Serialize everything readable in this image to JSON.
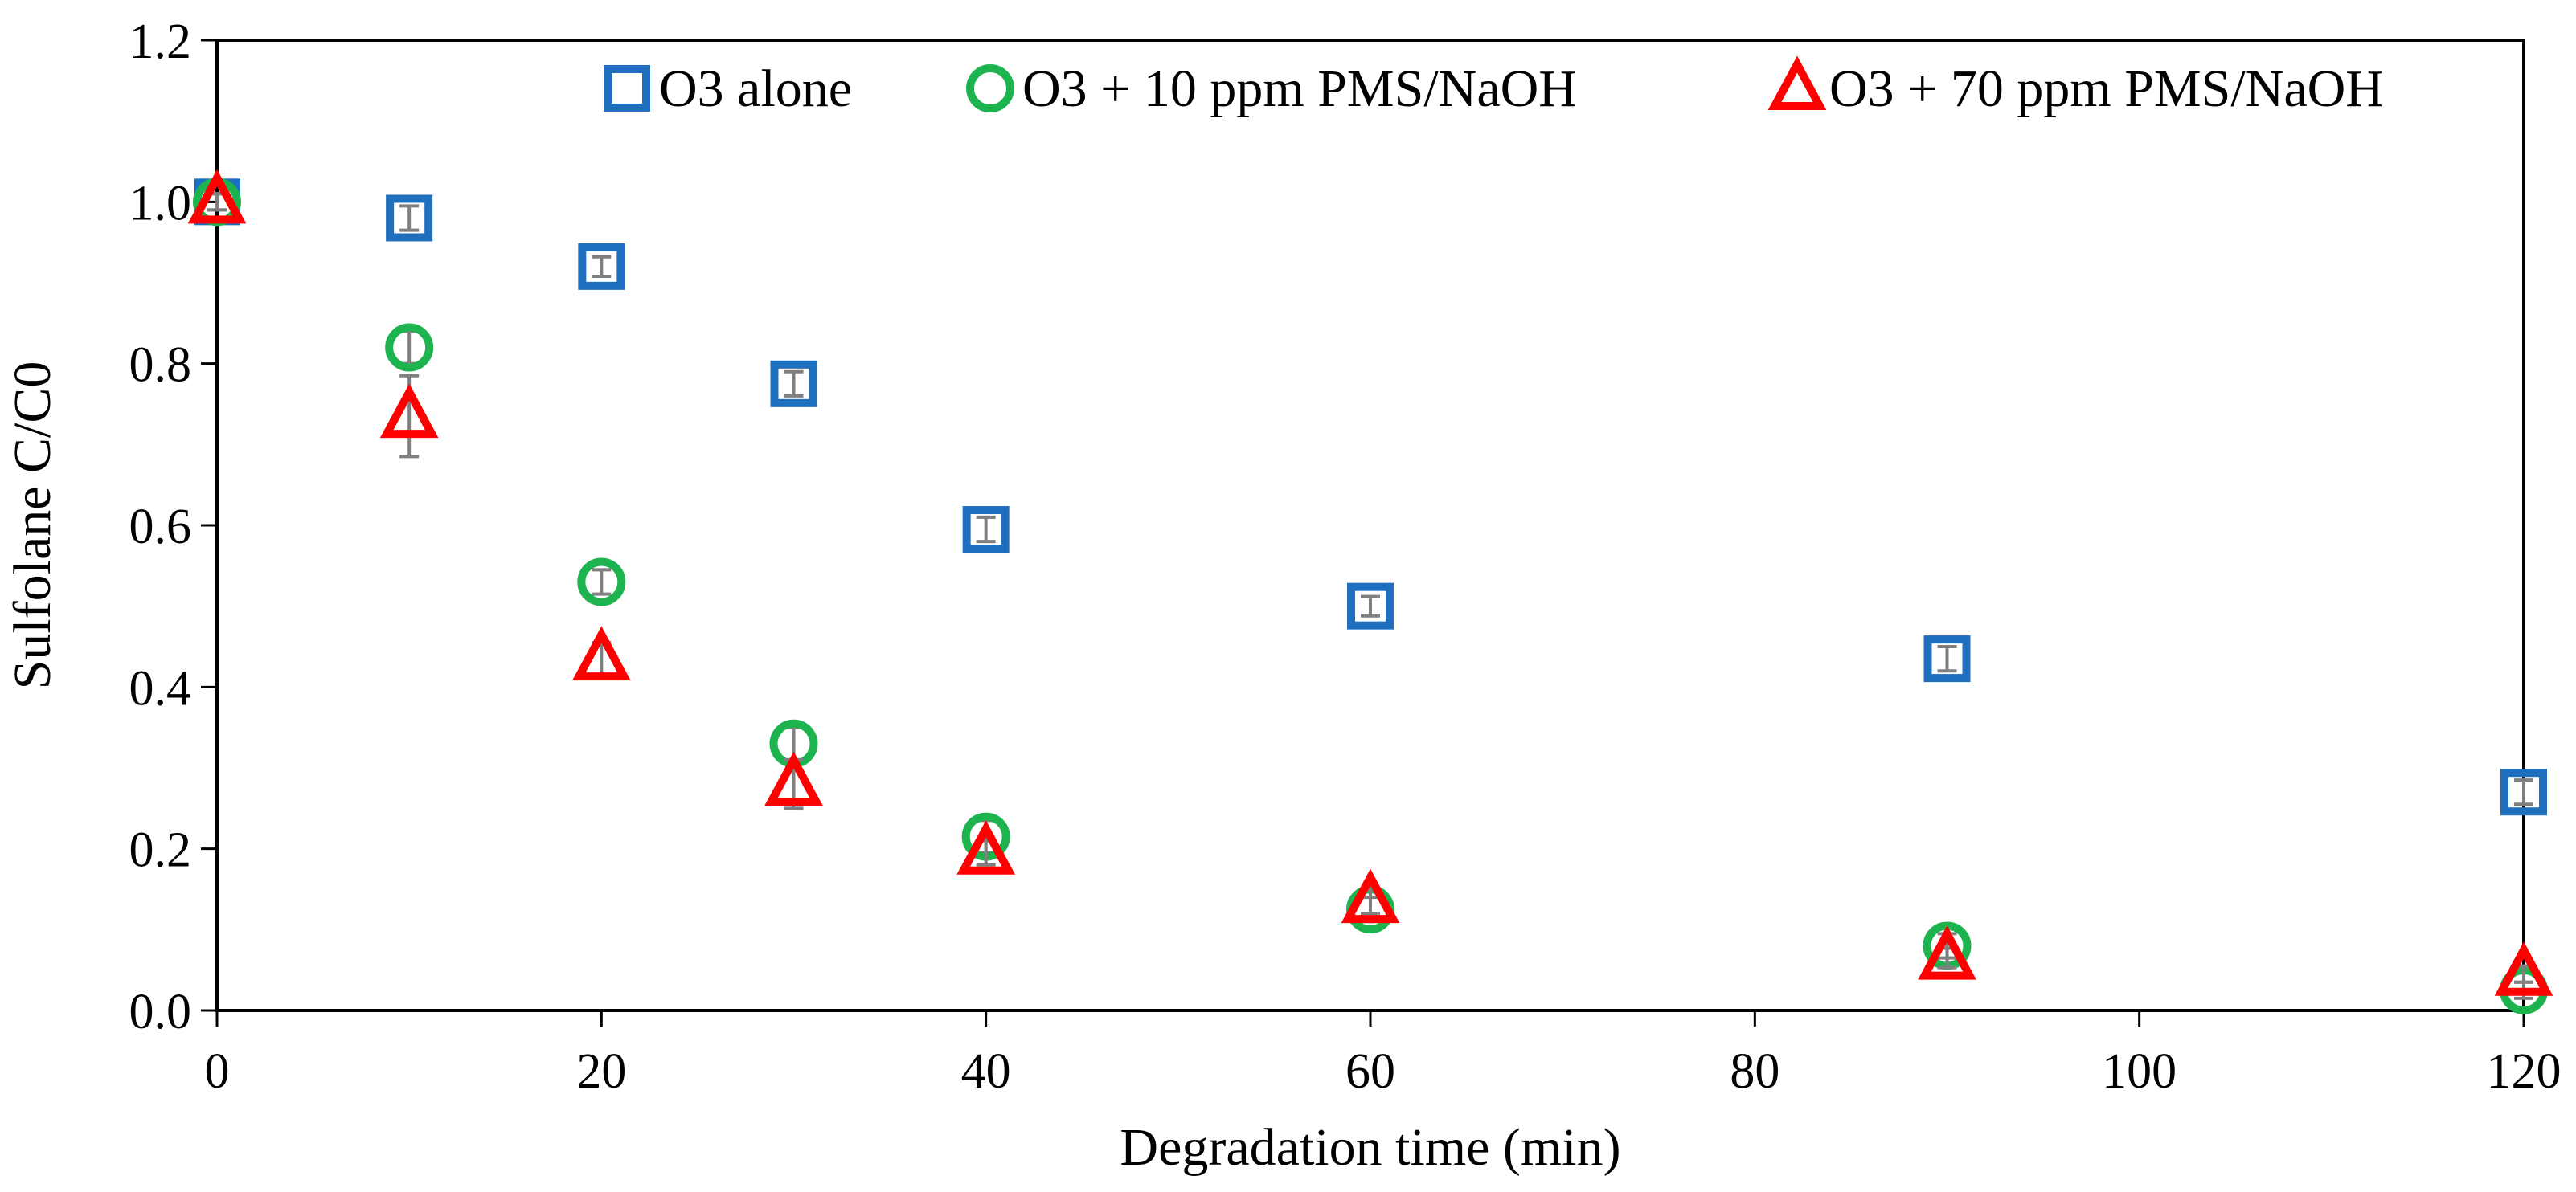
{
  "chart_data": {
    "type": "scatter",
    "title": "",
    "xlabel": "Degradation time (min)",
    "ylabel": "Sulfolane C/C0",
    "xlim": [
      0,
      120
    ],
    "ylim": [
      0,
      1.2
    ],
    "xticks": [
      0,
      20,
      40,
      60,
      80,
      100,
      120
    ],
    "xtick_labels": [
      "0",
      "20",
      "40",
      "60",
      "80",
      "100",
      "120"
    ],
    "yticks": [
      0,
      0.2,
      0.4,
      0.6,
      0.8,
      1.0,
      1.2
    ],
    "ytick_labels": [
      "0.0",
      "0.2",
      "0.4",
      "0.6",
      "0.8",
      "1.0",
      "1.2"
    ],
    "grid": false,
    "legend_position": "top",
    "error_bar_color": "#7f7f7f",
    "series": [
      {
        "name": "O3 alone",
        "marker": "square",
        "color": "#1f6fbf",
        "x": [
          0,
          10,
          20,
          30,
          40,
          60,
          90,
          120
        ],
        "y": [
          1.0,
          0.98,
          0.92,
          0.775,
          0.595,
          0.5,
          0.435,
          0.27
        ],
        "err": [
          0.01,
          0.015,
          0.012,
          0.015,
          0.015,
          0.012,
          0.015,
          0.015
        ]
      },
      {
        "name": "O3 + 10 ppm PMS/NaOH",
        "marker": "circle",
        "color": "#1db34f",
        "x": [
          0,
          10,
          20,
          30,
          40,
          60,
          90,
          120
        ],
        "y": [
          1.0,
          0.82,
          0.53,
          0.33,
          0.215,
          0.125,
          0.08,
          0.025
        ],
        "err": [
          0.01,
          0.02,
          0.015,
          0.02,
          0.02,
          0.015,
          0.015,
          0.01
        ]
      },
      {
        "name": "O3 + 70 ppm PMS/NaOH",
        "marker": "triangle",
        "color": "#ff0000",
        "x": [
          0,
          10,
          20,
          30,
          40,
          60,
          90,
          120
        ],
        "y": [
          1.0,
          0.735,
          0.435,
          0.28,
          0.195,
          0.135,
          0.065,
          0.045
        ],
        "err": [
          0.01,
          0.05,
          0.02,
          0.03,
          0.015,
          0.015,
          0.012,
          0.01
        ]
      }
    ]
  }
}
